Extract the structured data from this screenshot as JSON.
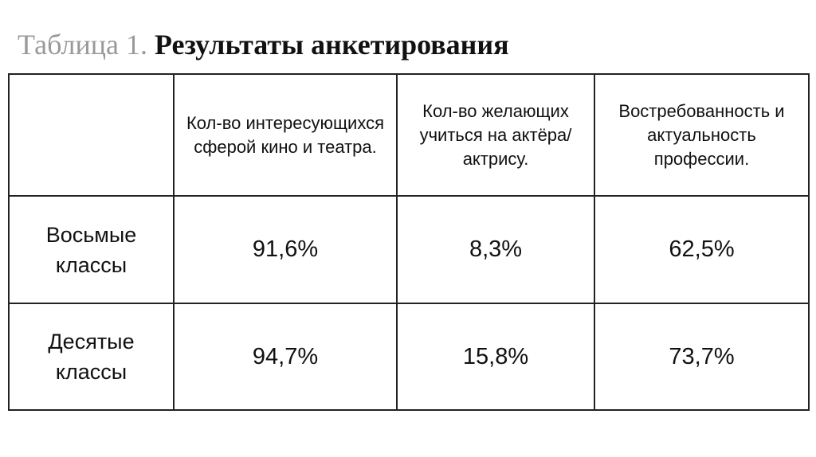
{
  "header": {
    "label": "Таблица 1.",
    "title": "Результаты анкетирования"
  },
  "table": {
    "columns": [
      "Кол-во интересующихся сферой кино и театра.",
      "Кол-во желающих учиться на актёра/актрису.",
      "Востребованность и актуальность профессии."
    ],
    "rows": [
      [
        "Восьмые классы",
        "91,6%",
        "8,3%",
        "62,5%"
      ],
      [
        "Десятые классы",
        "94,7%",
        "15,8%",
        "73,7%"
      ]
    ]
  }
}
